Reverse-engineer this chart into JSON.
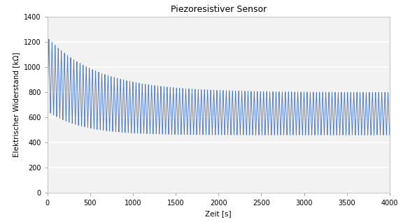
{
  "title": "Piezoresistiver Sensor",
  "xlabel": "Zeit [s]",
  "ylabel": "Elektrischer Widerstand [kΩ]",
  "xlim": [
    0,
    4000
  ],
  "ylim": [
    0,
    1400
  ],
  "xticks": [
    0,
    500,
    1000,
    1500,
    2000,
    2500,
    3000,
    3500,
    4000
  ],
  "yticks": [
    0,
    200,
    400,
    600,
    800,
    1000,
    1200,
    1400
  ],
  "total_time": 4000,
  "num_cycles": 110,
  "peak_start": 1235,
  "peak_end": 800,
  "trough_start": 650,
  "trough_end": 460,
  "tau_peak": 600,
  "tau_trough": 400,
  "line_color": "#4472C4",
  "line_width": 0.6,
  "bg_color": "#ffffff",
  "plot_bg_color": "#f2f2f2",
  "grid_color": "#ffffff",
  "grid_linewidth": 1.2,
  "title_fontsize": 9,
  "label_fontsize": 7.5,
  "tick_fontsize": 7
}
